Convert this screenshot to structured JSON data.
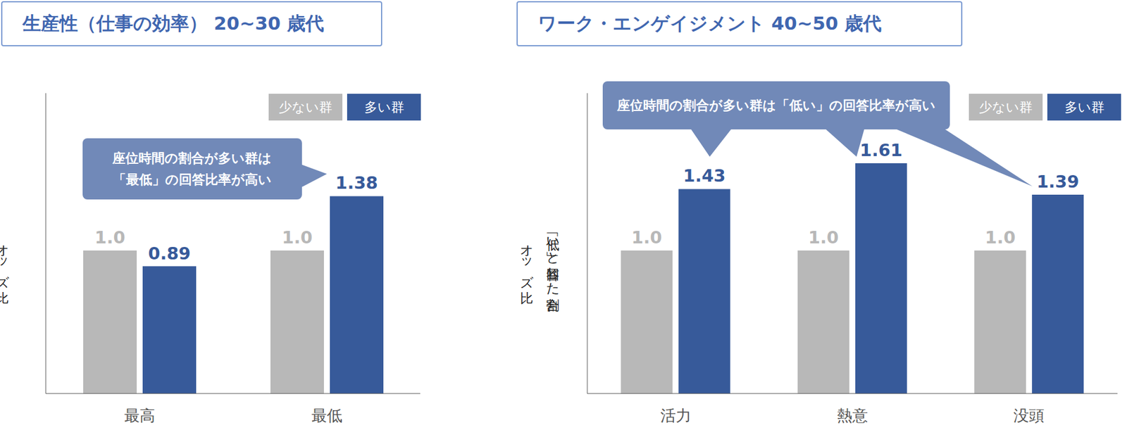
{
  "chart_data": [
    {
      "type": "bar",
      "title": "生産性（仕事の効率） 20~30 歳代",
      "ylabel": "オッズ比",
      "categories": [
        "最高",
        "最低"
      ],
      "series": [
        {
          "name": "少ない群",
          "color": "#b8b8b8",
          "values": [
            1.0,
            1.0
          ],
          "value_labels": [
            "1.0",
            "1.0"
          ]
        },
        {
          "name": "多い群",
          "color": "#375a9a",
          "values": [
            0.89,
            1.38
          ]
        }
      ],
      "ylim": [
        0,
        2.1
      ],
      "tick_labels": "x",
      "data_labels": true,
      "legend": "upper right",
      "annotation": "座位時間の割合が多い群は\n「最低」の回答比率が高い"
    },
    {
      "type": "bar",
      "title": "ワーク・エンゲイジメント 40~50 歳代",
      "ylabel": "「低い」と回答した割合\nオッズ比",
      "categories": [
        "活力",
        "熱意",
        "没頭"
      ],
      "series": [
        {
          "name": "少ない群",
          "color": "#b8b8b8",
          "values": [
            1.0,
            1.0,
            1.0
          ],
          "value_labels": [
            "1.0",
            "1.0",
            "1.0"
          ]
        },
        {
          "name": "多い群",
          "color": "#375a9a",
          "values": [
            1.43,
            1.61,
            1.39
          ]
        }
      ],
      "ylim": [
        0,
        2.1
      ],
      "tick_labels": "x",
      "data_labels": true,
      "legend": "upper right",
      "annotation": "座位時間の割合が多い群は「低い」の回答比率が高い"
    }
  ]
}
